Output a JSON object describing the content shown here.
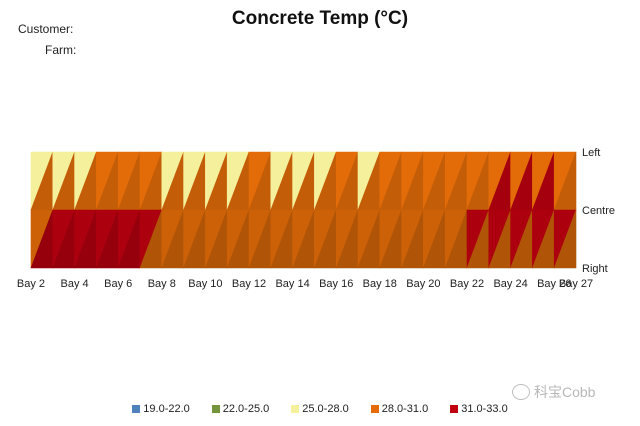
{
  "header": {
    "customer_label": "Customer:",
    "farm_label": "Farm:"
  },
  "chart_data": {
    "type": "heatmap",
    "title": "Concrete Temp (°C)",
    "x_ticks": [
      "Bay 2",
      "Bay 4",
      "Bay 6",
      "Bay 8",
      "Bay 10",
      "Bay 12",
      "Bay 14",
      "Bay 16",
      "Bay 18",
      "Bay 20",
      "Bay 22",
      "Bay 24",
      "Bay 26",
      "Bay 27"
    ],
    "y_ticks": [
      "Left",
      "Centre",
      "Right"
    ],
    "legend": [
      {
        "label": "19.0-22.0",
        "color": "#4f81bd"
      },
      {
        "label": "22.0-25.0",
        "color": "#77933c"
      },
      {
        "label": "25.0-28.0",
        "color": "#f5f09c"
      },
      {
        "label": "28.0-31.0",
        "color": "#e36c09"
      },
      {
        "label": "31.0-33.0",
        "color": "#c0000f"
      }
    ],
    "bays": [
      2,
      3,
      4,
      5,
      6,
      7,
      8,
      9,
      10,
      11,
      12,
      13,
      14,
      15,
      16,
      17,
      18,
      19,
      20,
      21,
      22,
      23,
      24,
      25,
      26,
      27
    ],
    "temps": {
      "Left": [
        24.5,
        24.5,
        25.5,
        26.5,
        26.5,
        26.5,
        26.5,
        26.5,
        26.5,
        26.0,
        26.5,
        26.5,
        26.5,
        26.5,
        26.5,
        27.0,
        26.0,
        29.0,
        29.5,
        30.0,
        29.5,
        29.5,
        30.0,
        30.5,
        29.5,
        30.0
      ],
      "Centre": [
        29.5,
        31.0,
        31.5,
        32.0,
        32.0,
        31.5,
        30.5,
        30.5,
        30.0,
        30.0,
        31.5,
        30.0,
        30.0,
        30.5,
        30.5,
        30.0,
        30.0,
        30.5,
        30.0,
        30.0,
        31.0,
        31.5,
        32.0,
        32.0,
        31.5,
        31.0
      ],
      "Right": [
        31.5,
        30.5,
        32.5,
        32.5,
        31.5,
        31.0,
        30.5,
        30.0,
        31.5,
        30.5,
        30.0,
        30.0,
        30.5,
        30.0,
        30.5,
        29.5,
        28.0,
        30.0,
        30.0,
        30.5,
        30.5,
        30.5,
        30.0,
        30.5,
        30.5,
        30.0
      ]
    },
    "value_ranges": [
      [
        19.0,
        22.0
      ],
      [
        22.0,
        25.0
      ],
      [
        25.0,
        28.0
      ],
      [
        28.0,
        31.0
      ],
      [
        31.0,
        33.0
      ]
    ]
  },
  "watermark": {
    "text": "科宝Cobb"
  }
}
